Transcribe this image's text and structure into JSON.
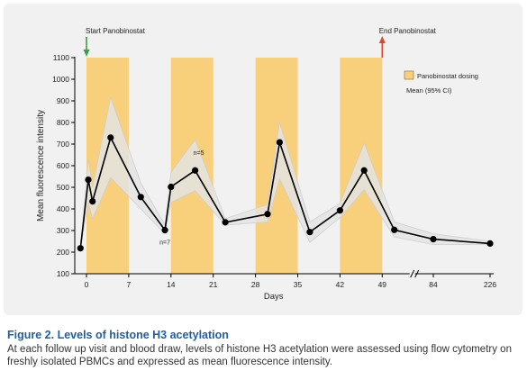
{
  "chart_data": {
    "type": "line",
    "title": "",
    "ylabel": "Mean fluorescence intensity",
    "xlabel": "Days",
    "ylim": [
      100,
      1100
    ],
    "yticks": [
      100,
      200,
      300,
      400,
      500,
      600,
      700,
      800,
      900,
      1000,
      1100
    ],
    "xticks": [
      "0",
      "7",
      "14",
      "21",
      "28",
      "35",
      "42",
      "49",
      "84",
      "226"
    ],
    "axis_break": true,
    "series": [
      {
        "name": "Mean (95% CI)",
        "points": [
          {
            "day": -1,
            "y": 218
          },
          {
            "day": 0.3,
            "y": 535
          },
          {
            "day": 1,
            "y": 435
          },
          {
            "day": 4,
            "y": 730
          },
          {
            "day": 9,
            "y": 455
          },
          {
            "day": 13,
            "y": 302
          },
          {
            "day": 14,
            "y": 502
          },
          {
            "day": 18,
            "y": 578
          },
          {
            "day": 23,
            "y": 338
          },
          {
            "day": 30,
            "y": 376
          },
          {
            "day": 32,
            "y": 708
          },
          {
            "day": 37,
            "y": 293
          },
          {
            "day": 42,
            "y": 393
          },
          {
            "day": 46,
            "y": 578
          },
          {
            "day": 51,
            "y": 303
          },
          {
            "day": 84,
            "y": 260
          },
          {
            "day": 226,
            "y": 240
          }
        ],
        "ci_lower": [
          218,
          430,
          355,
          545,
          400,
          285,
          430,
          485,
          325,
          340,
          540,
          245,
          360,
          490,
          270,
          235,
          235
        ],
        "ci_upper": [
          218,
          630,
          500,
          915,
          520,
          325,
          570,
          720,
          355,
          420,
          800,
          340,
          425,
          705,
          340,
          285,
          250
        ]
      }
    ],
    "dosing_periods": [
      [
        0,
        7
      ],
      [
        14,
        21
      ],
      [
        28,
        35
      ],
      [
        42,
        49
      ]
    ],
    "legend": {
      "position": "top-right",
      "items": [
        {
          "label": "Panobinostat dosing",
          "color": "#f8cf7a"
        },
        {
          "label": "Mean (95% CI)",
          "color": "#000000"
        }
      ]
    },
    "annotations": [
      {
        "text": "Start Panobinostat",
        "day": 0,
        "arrow": "down",
        "color": "#3e9c48"
      },
      {
        "text": "End Panobinostat",
        "day": 49,
        "arrow": "up",
        "color": "#e0462b"
      },
      {
        "text": "n=5",
        "day": 18
      },
      {
        "text": "n=7",
        "day": 13
      }
    ],
    "colors": {
      "dosing": "#f8cf7a",
      "ci_band": "#e4e4e4",
      "line": "#000000",
      "start_arrow": "#3e9c48",
      "end_arrow": "#e0462b"
    }
  },
  "caption": {
    "label": "Figure 2.",
    "title": "Levels of histone H3 acetylation",
    "text": "At each follow up visit and blood draw, levels of histone H3 acetylation were assessed using flow cytometry on freshly isolated PBMCs and expressed as mean fluorescence intensity."
  }
}
